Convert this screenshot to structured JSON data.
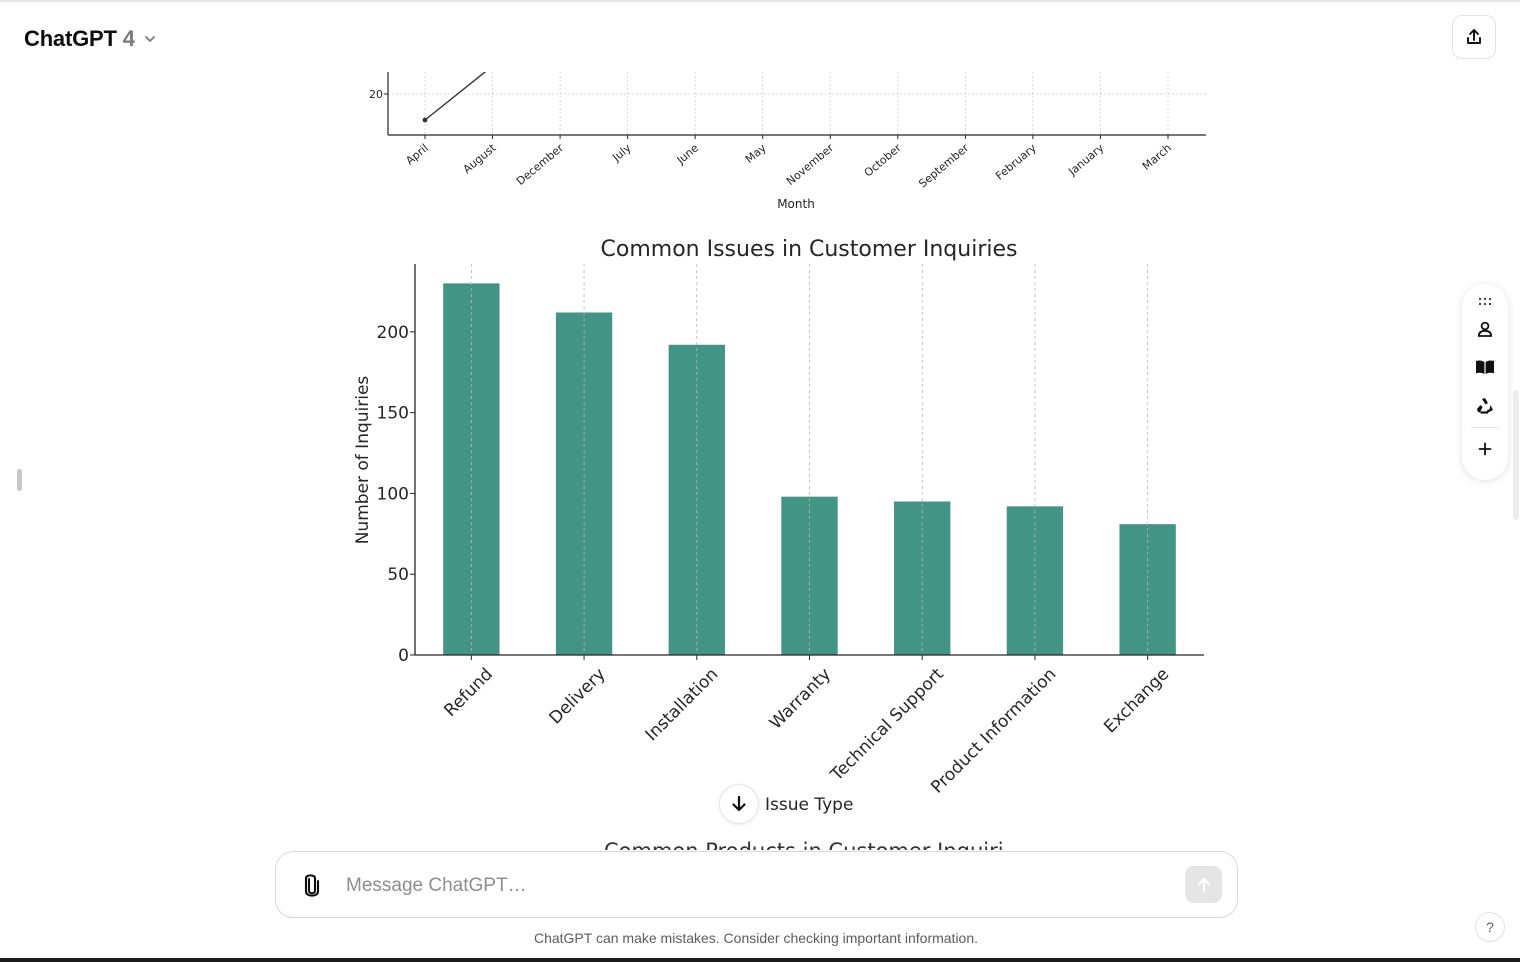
{
  "header": {
    "title": "ChatGPT",
    "version": "4",
    "chevron_icon": "chevron-down-icon",
    "share_icon": "share-upload-icon"
  },
  "side_toolbar": {
    "icons": [
      "grid-dots-icon",
      "person-icon",
      "book-icon",
      "recycle-icon",
      "plus-icon"
    ]
  },
  "composer": {
    "placeholder": "Message ChatGPT…",
    "value": "",
    "attach_icon": "paperclip-icon",
    "send_icon": "arrow-up-icon"
  },
  "scroll_down_icon": "arrow-down-icon",
  "disclaimer": "ChatGPT can make mistakes. Consider checking important information.",
  "help_label": "?",
  "next_chart_title": "Common Products in Customer Inquiries",
  "colors": {
    "bar": "#429584",
    "line": "#333333",
    "axis": "#262626",
    "grid": "#cfcfcf"
  },
  "chart_data": [
    {
      "type": "line",
      "title": "",
      "xlabel": "Month",
      "ylabel": "",
      "categories": [
        "April",
        "August",
        "December",
        "July",
        "June",
        "May",
        "November",
        "October",
        "September",
        "February",
        "January",
        "March"
      ],
      "y_ticks": [
        20
      ],
      "visible_points": [
        {
          "x": "April",
          "y": 18.7
        },
        {
          "x": "August",
          "y": 21.4
        }
      ],
      "grid": true,
      "note_cropped": true
    },
    {
      "type": "bar",
      "title": "Common Issues in Customer Inquiries",
      "xlabel": "Issue Type",
      "ylabel": "Number of Inquiries",
      "categories": [
        "Refund",
        "Delivery",
        "Installation",
        "Warranty",
        "Technical Support",
        "Product Information",
        "Exchange"
      ],
      "values": [
        230,
        212,
        192,
        98,
        95,
        92,
        81
      ],
      "ylim": [
        0,
        242
      ],
      "y_ticks": [
        0,
        50,
        100,
        150,
        200
      ],
      "grid": true,
      "legend": "none"
    }
  ]
}
